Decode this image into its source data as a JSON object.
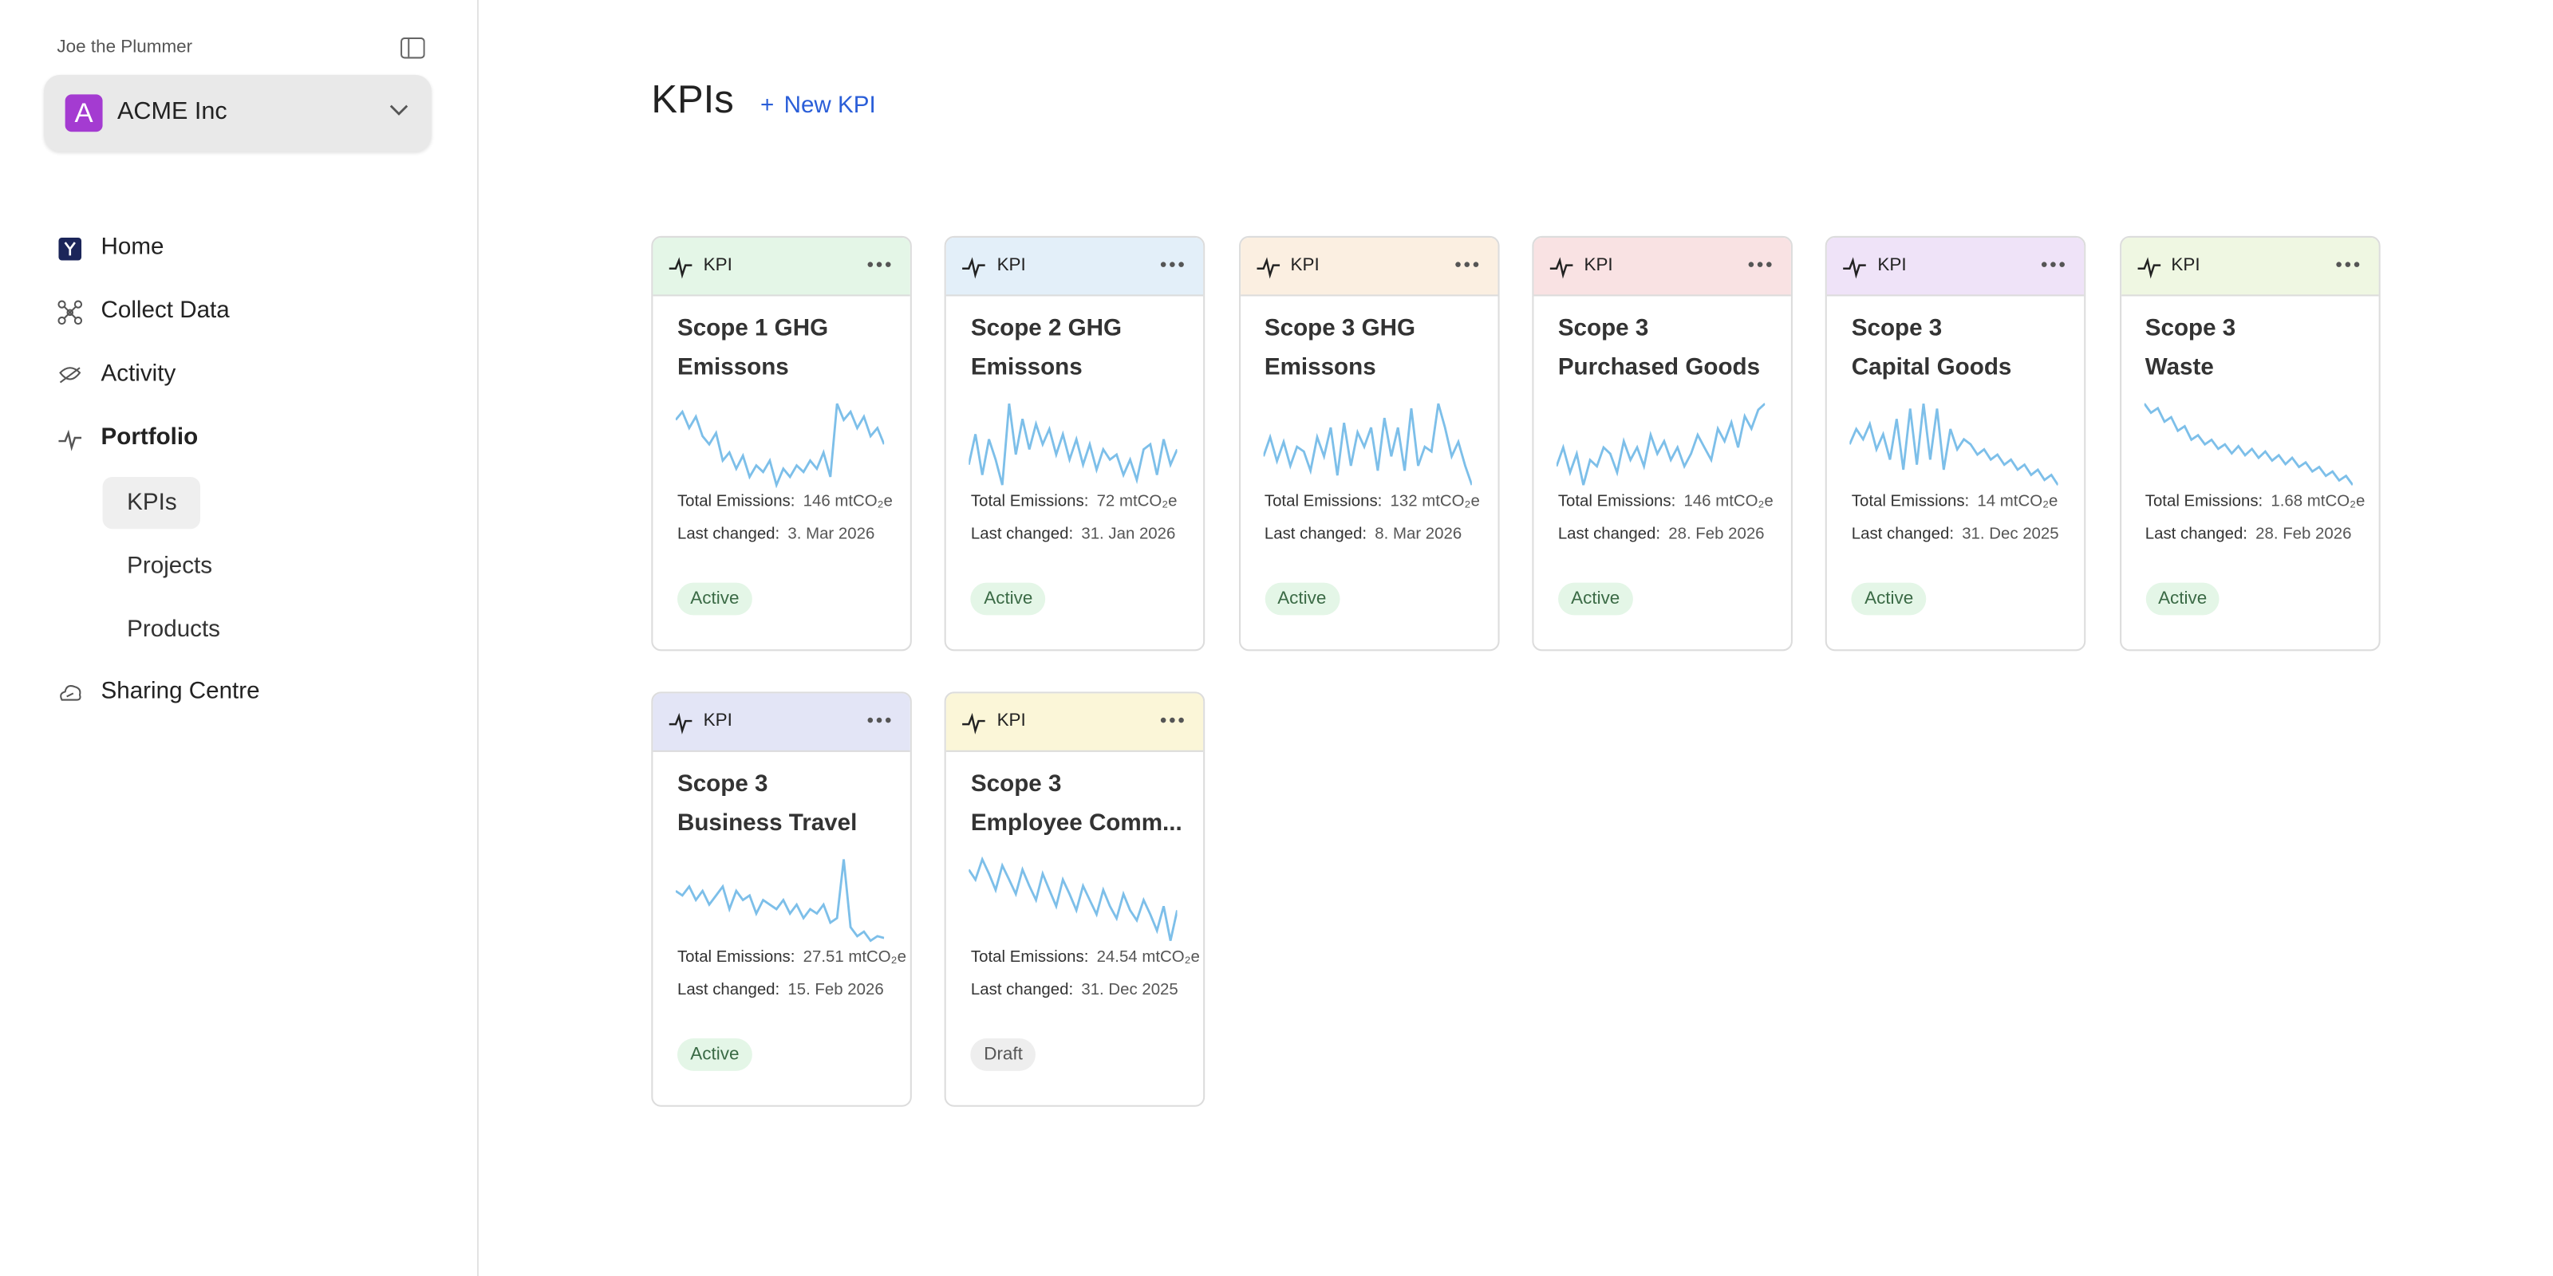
{
  "sidebar": {
    "user": "Joe the Plummer",
    "org": {
      "initial": "A",
      "name": "ACME Inc"
    },
    "nav": [
      {
        "label": "Home",
        "icon": "home"
      },
      {
        "label": "Collect Data",
        "icon": "collect"
      },
      {
        "label": "Activity",
        "icon": "activity"
      },
      {
        "label": "Portfolio",
        "icon": "pulse",
        "active": true,
        "children": [
          {
            "label": "KPIs",
            "selected": true
          },
          {
            "label": "Projects"
          },
          {
            "label": "Products"
          }
        ]
      },
      {
        "label": "Sharing Centre",
        "icon": "share"
      }
    ]
  },
  "header": {
    "title": "KPIs",
    "action": "New KPI"
  },
  "cards": [
    {
      "tag": "KPI",
      "color": "#e4f6e7",
      "title": [
        "Scope 1 GHG",
        "Emissons"
      ],
      "emissions_label": "Total Emissions:",
      "emissions": "146 mtCO₂e",
      "changed_label": "Last changed:",
      "changed": "3. Mar 2026",
      "status": "Active",
      "trend": [
        70,
        75,
        65,
        72,
        60,
        55,
        62,
        45,
        50,
        40,
        48,
        35,
        42,
        38,
        45,
        30,
        40,
        35,
        42,
        38,
        45,
        40,
        50,
        35,
        80,
        70,
        75,
        65,
        72,
        60,
        65,
        55
      ]
    },
    {
      "tag": "KPI",
      "color": "#e3eff9",
      "title": [
        "Scope 2 GHG",
        "Emissons"
      ],
      "emissions_label": "Total Emissions:",
      "emissions": "72 mtCO₂e",
      "changed_label": "Last changed:",
      "changed": "31. Jan 2026",
      "status": "Active",
      "trend": [
        30,
        60,
        20,
        55,
        35,
        10,
        90,
        40,
        75,
        45,
        70,
        50,
        65,
        40,
        60,
        35,
        55,
        30,
        50,
        25,
        45,
        35,
        40,
        20,
        35,
        15,
        45,
        50,
        20,
        55,
        30,
        45
      ]
    },
    {
      "tag": "KPI",
      "color": "#fbefe1",
      "title": [
        "Scope 3 GHG",
        "Emissons"
      ],
      "emissions_label": "Total Emissions:",
      "emissions": "132 mtCO₂e",
      "changed_label": "Last changed:",
      "changed": "8. Mar 2026",
      "status": "Active",
      "trend": [
        40,
        60,
        35,
        55,
        30,
        50,
        45,
        25,
        60,
        40,
        70,
        20,
        75,
        30,
        65,
        50,
        70,
        25,
        80,
        40,
        70,
        25,
        90,
        30,
        50,
        45,
        95,
        70,
        40,
        55,
        30,
        10
      ]
    },
    {
      "tag": "KPI",
      "color": "#f9e2e3",
      "title": [
        "Scope 3",
        "Purchased Goods"
      ],
      "emissions_label": "Total Emissions:",
      "emissions": "146 mtCO₂e",
      "changed_label": "Last changed:",
      "changed": "28. Feb 2026",
      "status": "Active",
      "trend": [
        35,
        50,
        30,
        45,
        20,
        40,
        35,
        50,
        45,
        30,
        55,
        40,
        50,
        35,
        60,
        45,
        55,
        40,
        50,
        35,
        45,
        60,
        50,
        40,
        65,
        55,
        70,
        50,
        75,
        65,
        80,
        85
      ]
    },
    {
      "tag": "KPI",
      "color": "#efe3f8",
      "title": [
        "Scope 3",
        "Capital Goods"
      ],
      "emissions_label": "Total Emissions:",
      "emissions": "14 mtCO₂e",
      "changed_label": "Last changed:",
      "changed": "31. Dec 2025",
      "status": "Active",
      "trend": [
        55,
        70,
        60,
        75,
        50,
        65,
        40,
        80,
        30,
        90,
        35,
        95,
        40,
        90,
        30,
        70,
        50,
        60,
        55,
        45,
        50,
        40,
        45,
        35,
        40,
        30,
        35,
        25,
        30,
        20,
        25,
        15
      ]
    },
    {
      "tag": "KPI",
      "color": "#eff7e2",
      "title": [
        "Scope 3",
        "Waste"
      ],
      "emissions_label": "Total Emissions:",
      "emissions": "1.68 mtCO₂e",
      "changed_label": "Last changed:",
      "changed": "28. Feb 2026",
      "status": "Active",
      "trend": [
        95,
        85,
        90,
        75,
        80,
        65,
        70,
        55,
        60,
        50,
        55,
        45,
        50,
        40,
        48,
        38,
        45,
        35,
        42,
        32,
        38,
        28,
        35,
        25,
        30,
        20,
        25,
        15,
        20,
        10,
        15,
        5
      ]
    },
    {
      "tag": "KPI",
      "color": "#e3e5f6",
      "title": [
        "Scope 3",
        "Business Travel"
      ],
      "emissions_label": "Total Emissions:",
      "emissions": "27.51 mtCO₂e",
      "changed_label": "Last changed:",
      "changed": "15. Feb 2026",
      "status": "Active",
      "trend": [
        60,
        55,
        65,
        50,
        60,
        45,
        55,
        65,
        40,
        60,
        50,
        55,
        35,
        50,
        45,
        40,
        50,
        35,
        45,
        30,
        40,
        35,
        45,
        25,
        30,
        95,
        20,
        10,
        15,
        5,
        10,
        8
      ]
    },
    {
      "tag": "KPI",
      "color": "#fbf6d8",
      "title": [
        "Scope 3",
        "Employee Comm..."
      ],
      "emissions_label": "Total Emissions:",
      "emissions": "24.54 mtCO₂e",
      "changed_label": "Last changed:",
      "changed": "31. Dec 2025",
      "status": "Draft",
      "trend": [
        60,
        55,
        65,
        58,
        50,
        62,
        55,
        48,
        60,
        52,
        45,
        58,
        50,
        42,
        55,
        48,
        40,
        52,
        45,
        38,
        50,
        42,
        36,
        48,
        40,
        35,
        45,
        38,
        30,
        42,
        25,
        40
      ]
    }
  ]
}
